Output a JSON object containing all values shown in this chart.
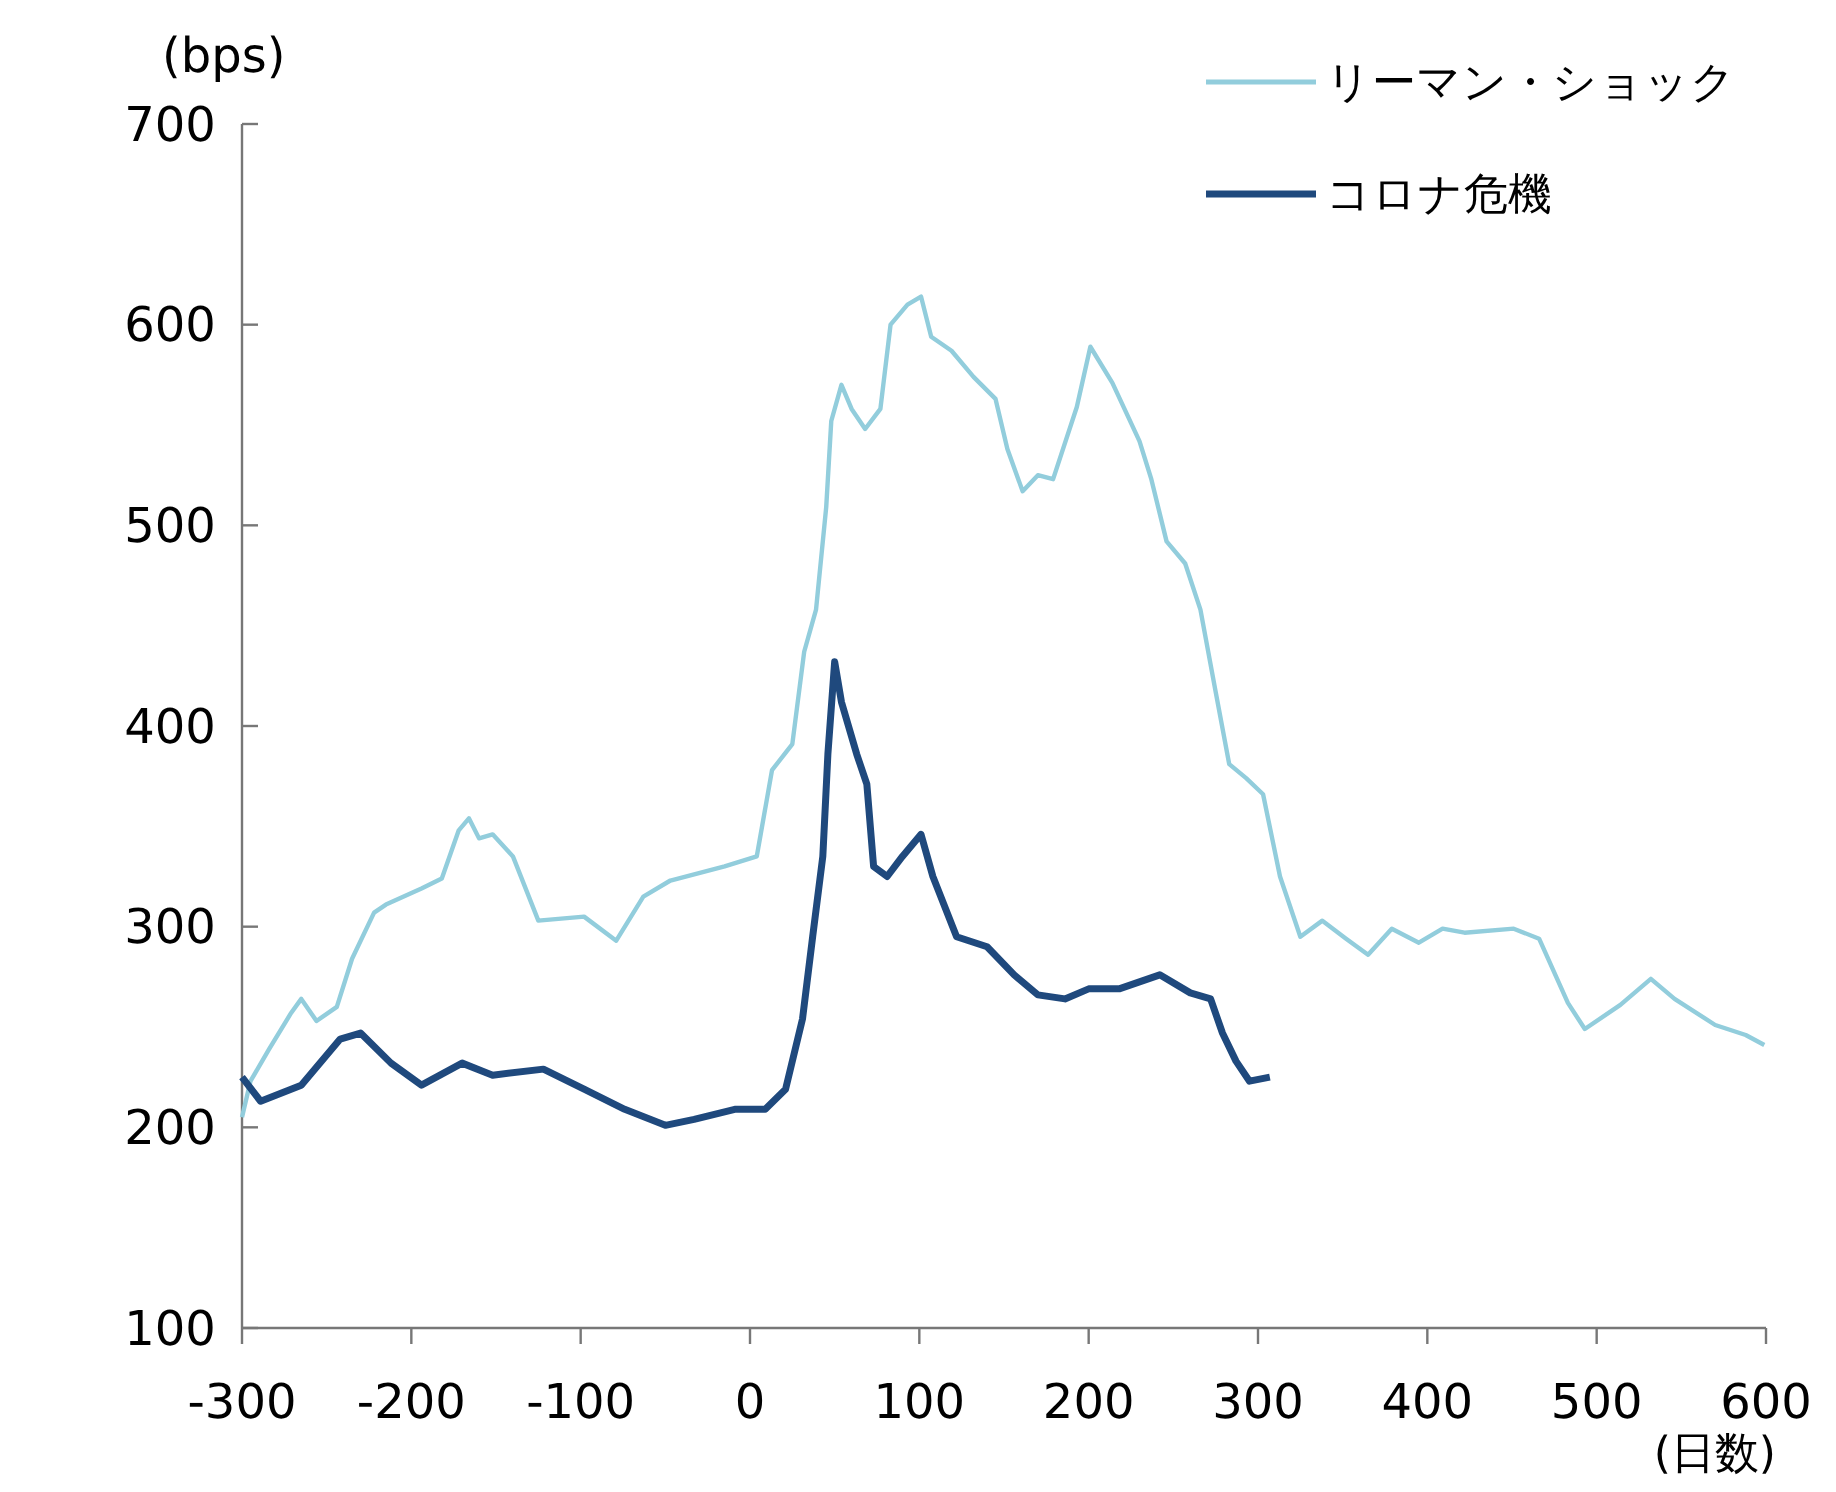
{
  "chart_data": {
    "type": "line",
    "ylabel": "(bps)",
    "xlabel": "(日数)",
    "xlim": [
      -300,
      600
    ],
    "ylim": [
      100,
      700
    ],
    "xticks": [
      -300,
      -200,
      -100,
      0,
      100,
      200,
      300,
      400,
      500,
      600
    ],
    "yticks": [
      100,
      200,
      300,
      400,
      500,
      600,
      700
    ],
    "grid": false,
    "legend": "top right",
    "line_style": "solid",
    "series": [
      {
        "name": "リーマン・ショック",
        "color": "#92cddc",
        "x": [
          -300,
          -295,
          -284,
          -271,
          -265,
          -256,
          -244,
          -235,
          -222,
          -215,
          -194,
          -182,
          -172,
          -166,
          -160,
          -152,
          -140,
          -125,
          -98,
          -79,
          -63,
          -47,
          -15,
          4,
          13,
          25,
          32,
          39,
          45,
          48,
          54,
          60,
          68,
          77,
          83,
          93,
          101,
          107,
          119,
          132,
          145,
          152,
          161,
          170,
          179,
          193,
          201,
          214,
          230,
          237,
          246,
          257,
          266,
          275,
          283,
          293,
          303,
          313,
          325,
          338,
          352,
          365,
          379,
          395,
          409,
          422,
          451,
          466,
          483,
          493,
          514,
          532,
          546,
          570,
          588,
          599
        ],
        "values": [
          205,
          223,
          239,
          257,
          264,
          253,
          260,
          284,
          307,
          311,
          319,
          324,
          348,
          354,
          344,
          346,
          335,
          303,
          305,
          293,
          315,
          323,
          330,
          335,
          378,
          391,
          437,
          458,
          509,
          552,
          570,
          558,
          548,
          558,
          600,
          610,
          614,
          594,
          587,
          574,
          563,
          538,
          517,
          525,
          523,
          559,
          589,
          571,
          542,
          523,
          492,
          481,
          458,
          417,
          381,
          374,
          366,
          325,
          295,
          303,
          294,
          286,
          299,
          292,
          299,
          297,
          299,
          294,
          262,
          249,
          261,
          274,
          264,
          251,
          246,
          241
        ]
      },
      {
        "name": "コロナ危機",
        "color": "#1f497d",
        "x": [
          -300,
          -289,
          -265,
          -242,
          -230,
          -212,
          -194,
          -170,
          -152,
          -122,
          -98,
          -74,
          -50,
          -33,
          -9,
          9,
          21,
          31,
          37,
          43,
          46,
          50,
          54,
          63,
          69,
          73,
          81,
          90,
          101,
          108,
          122,
          140,
          156,
          170,
          186,
          200,
          218,
          242,
          260,
          272,
          279,
          287,
          295,
          307
        ],
        "values": [
          225,
          213,
          221,
          244,
          247,
          232,
          221,
          232,
          226,
          229,
          219,
          209,
          201,
          204,
          209,
          209,
          219,
          254,
          295,
          335,
          386,
          432,
          412,
          386,
          371,
          330,
          325,
          335,
          346,
          325,
          295,
          290,
          276,
          266,
          264,
          269,
          269,
          276,
          267,
          264,
          247,
          233,
          223,
          225
        ]
      }
    ]
  }
}
